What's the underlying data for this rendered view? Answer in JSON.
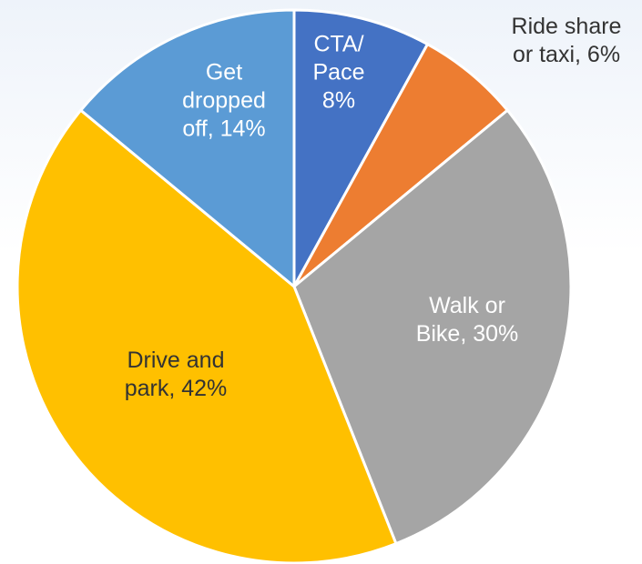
{
  "chart_data": {
    "type": "pie",
    "categories": [
      "CTA/ Pace",
      "Ride share or taxi,",
      "Walk or Bike,",
      "Drive and park,",
      "Get dropped off,"
    ],
    "values": [
      8,
      6,
      30,
      42,
      14
    ],
    "value_labels": [
      "8%",
      "6%",
      "30%",
      "42%",
      "14%"
    ],
    "colors": [
      "#4472c4",
      "#ed7d31",
      "#a5a5a5",
      "#ffc000",
      "#5b9bd5"
    ]
  }
}
